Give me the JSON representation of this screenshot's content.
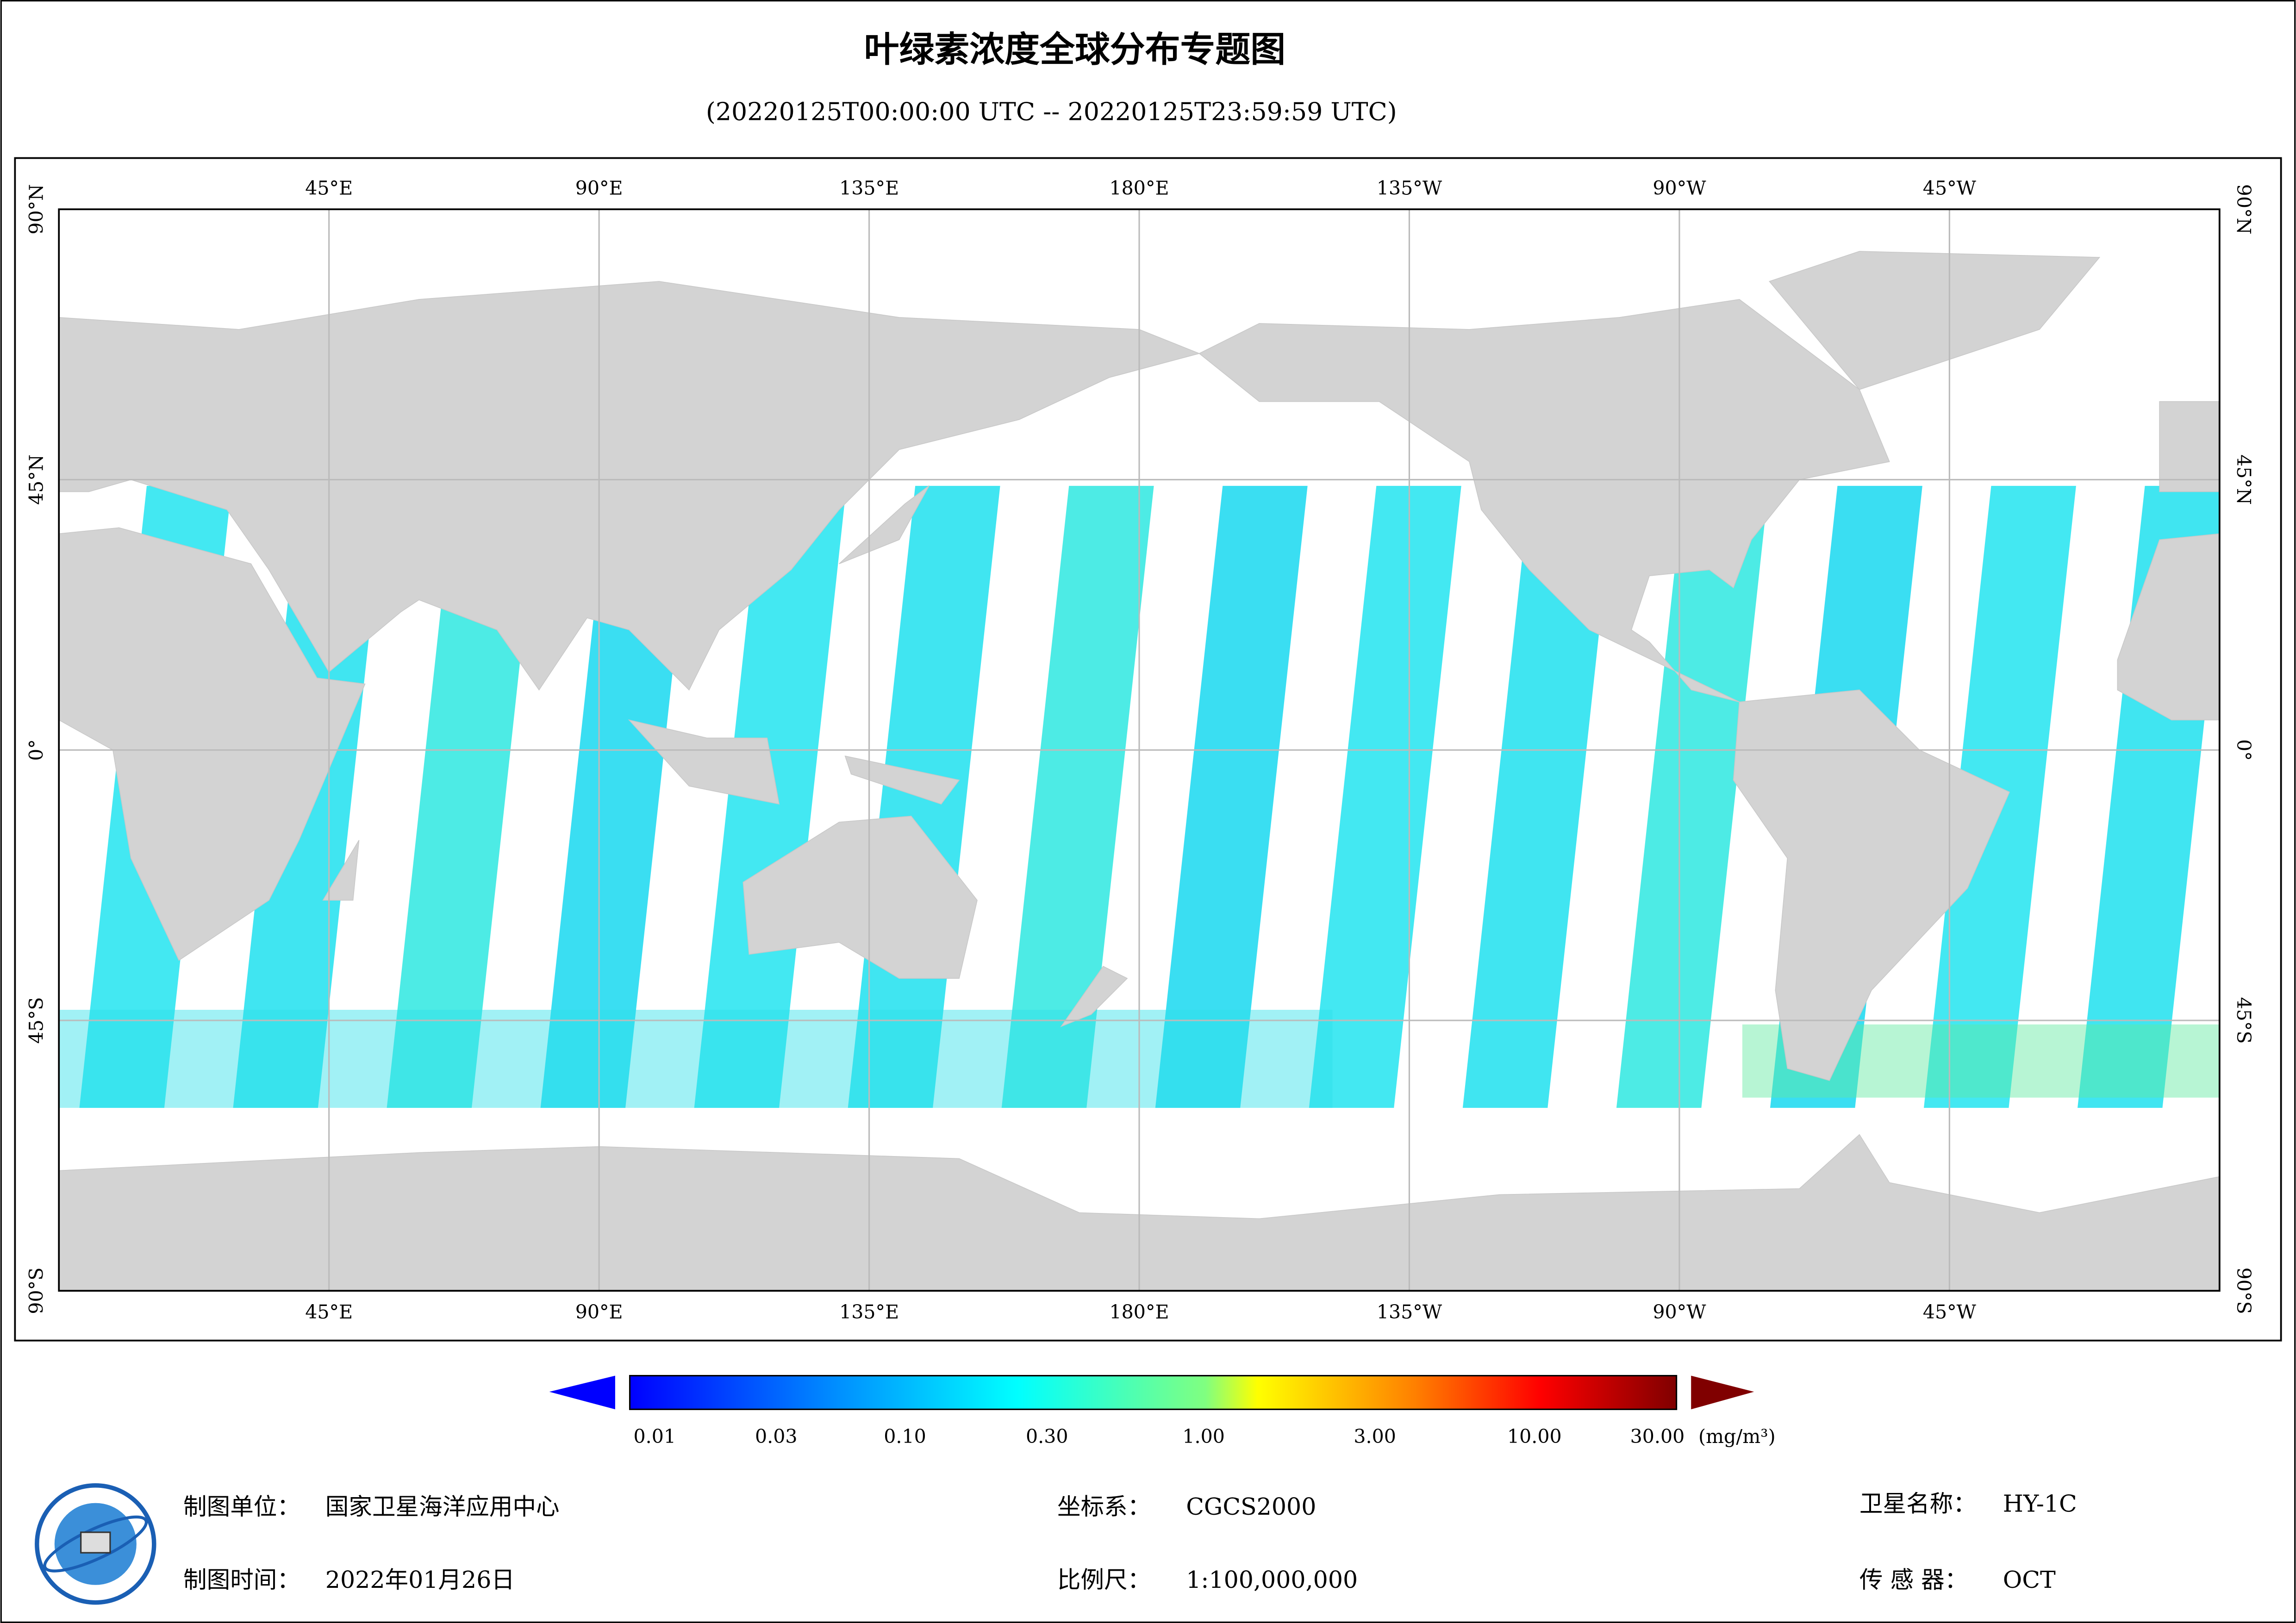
{
  "header": {
    "title": "叶绿素浓度全球分布专题图",
    "subtitle": "(20220125T00:00:00 UTC -- 20220125T23:59:59 UTC)"
  },
  "map": {
    "lon_labels": [
      "45°E",
      "90°E",
      "135°E",
      "180°E",
      "135°W",
      "90°W",
      "45°W"
    ],
    "lat_labels": [
      "90°N",
      "45°N",
      "0°",
      "45°S",
      "90°S"
    ]
  },
  "colorbar": {
    "labels": [
      "0.01",
      "0.03",
      "0.10",
      "0.30",
      "1.00",
      "3.00",
      "10.00",
      "30.00"
    ],
    "unit": "(mg/m³)"
  },
  "footer": {
    "unit_label": "制图单位：",
    "unit": "国家卫星海洋应用中心",
    "date_label": "制图时间：",
    "date": "2022年01月26日",
    "crs_label": "坐标系：",
    "crs": "CGCS2000",
    "scale_label": "比例尺：",
    "scale": "1:100,000,000",
    "satellite_label": "卫星名称：",
    "satellite": "HY-1C",
    "sensor_label": "传 感 器：",
    "sensor": "OCT"
  }
}
